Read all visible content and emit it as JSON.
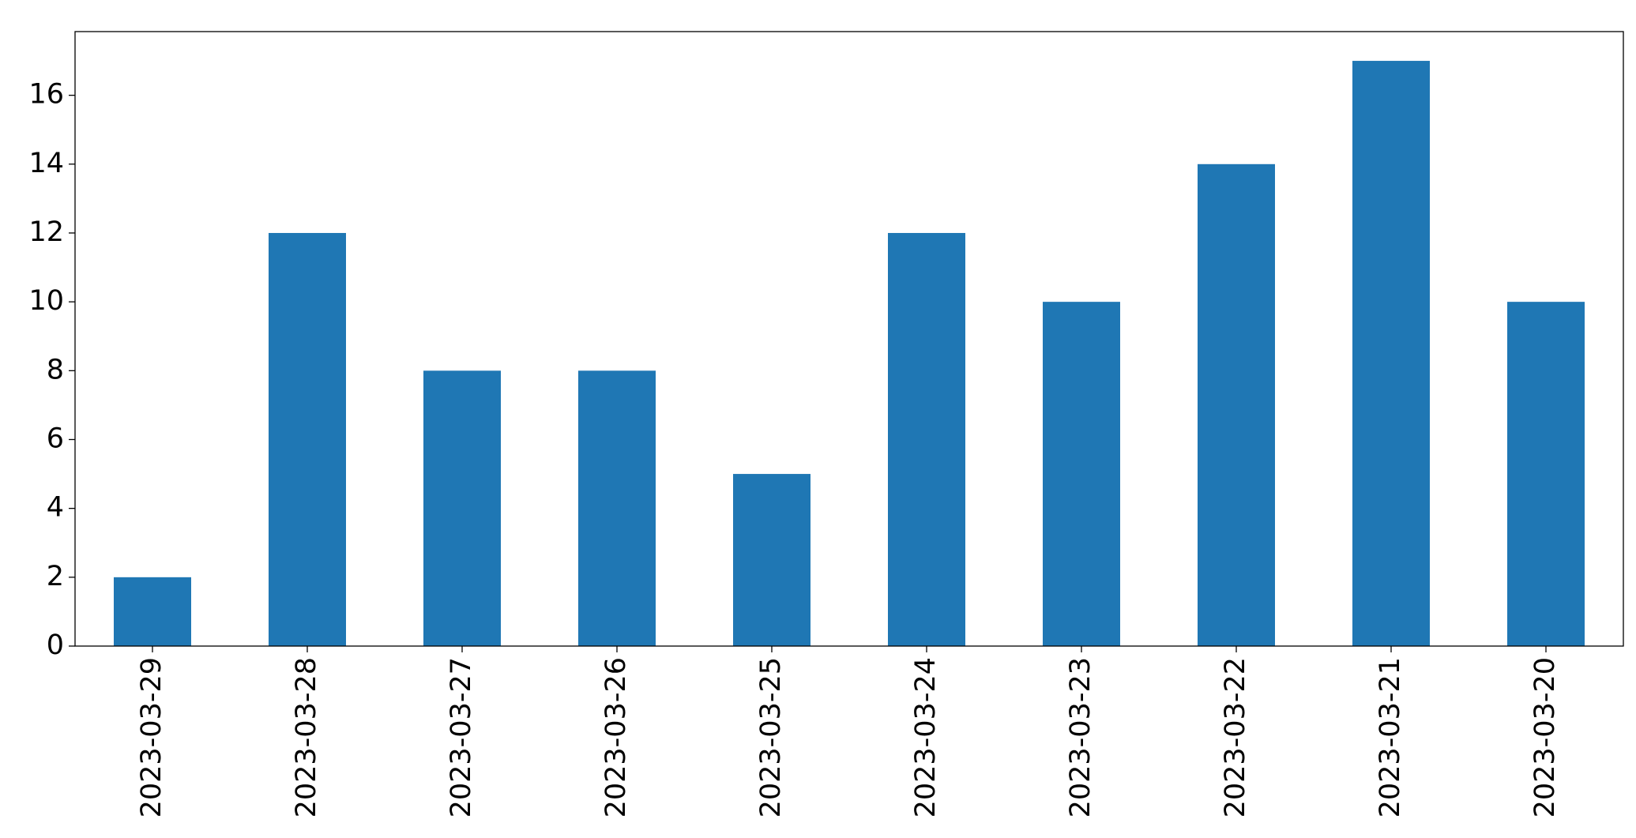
{
  "chart_data": {
    "type": "bar",
    "categories": [
      "2023-03-29",
      "2023-03-28",
      "2023-03-27",
      "2023-03-26",
      "2023-03-25",
      "2023-03-24",
      "2023-03-23",
      "2023-03-22",
      "2023-03-21",
      "2023-03-20"
    ],
    "values": [
      2,
      12,
      8,
      8,
      5,
      12,
      10,
      14,
      17,
      10
    ],
    "color": "#1f77b4",
    "ylim": [
      0,
      17.85
    ],
    "yticks": [
      0,
      2,
      4,
      6,
      8,
      10,
      12,
      14,
      16
    ],
    "grid": false
  }
}
